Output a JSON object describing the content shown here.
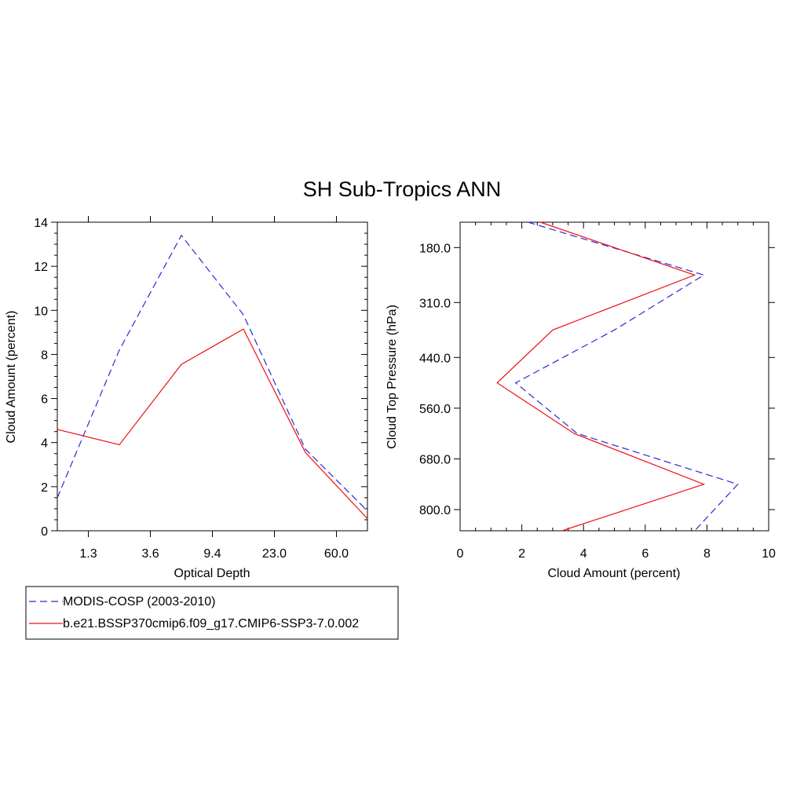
{
  "figure": {
    "title": "SH Sub-Tropics ANN"
  },
  "legend": {
    "placement": "bottom-left",
    "entries": [
      {
        "label": "MODIS-COSP (2003-2010)",
        "color": "#2a2ad6",
        "dash": "dashed"
      },
      {
        "label": "b.e21.BSSP370cmip6.f09_g17.CMIP6-SSP3-7.0.002",
        "color": "#ee1111",
        "dash": "solid"
      }
    ]
  },
  "chart_data": [
    {
      "type": "line",
      "xlabel": "Optical Depth",
      "ylabel": "Cloud Amount (percent)",
      "x_tick_labels": [
        "1.3",
        "3.6",
        "9.4",
        "23.0",
        "60.0"
      ],
      "y_ticks": [
        0,
        2,
        4,
        6,
        8,
        10,
        12,
        14
      ],
      "y_tick_labels": [
        "0",
        "2",
        "4",
        "6",
        "8",
        "10",
        "12",
        "14"
      ],
      "ylim": [
        0,
        14
      ],
      "x": [
        0.3,
        1.3,
        2.3,
        3.6,
        6.0,
        9.4,
        15.0,
        23.0,
        41.0,
        60.0,
        80.0
      ],
      "series": [
        {
          "name": "MODIS-COSP (2003-2010)",
          "x": [
            0.3,
            2.3,
            6.0,
            15.0,
            41.0,
            80.0
          ],
          "values": [
            1.5,
            8.2,
            13.4,
            9.8,
            3.7,
            0.9
          ]
        },
        {
          "name": "b.e21.BSSP370cmip6.f09_g17.CMIP6-SSP3-7.0.002",
          "x": [
            0.3,
            2.3,
            6.0,
            15.0,
            41.0,
            80.0
          ],
          "values": [
            4.6,
            3.9,
            7.55,
            9.15,
            3.55,
            0.55
          ]
        }
      ],
      "grid": false
    },
    {
      "type": "line",
      "xlabel": "Cloud Amount (percent)",
      "ylabel": "Cloud Top Pressure (hPa)",
      "x_ticks": [
        0,
        2,
        4,
        6,
        8,
        10
      ],
      "x_tick_labels": [
        "0",
        "2",
        "4",
        "6",
        "8",
        "10"
      ],
      "xlim": [
        0,
        10
      ],
      "y_ticks": [
        180.0,
        310.0,
        440.0,
        560.0,
        680.0,
        800.0
      ],
      "y_tick_labels": [
        "180.0",
        "310.0",
        "440.0",
        "560.0",
        "680.0",
        "800.0"
      ],
      "ylim": [
        120,
        850
      ],
      "y_inverted": true,
      "series": [
        {
          "name": "MODIS-COSP (2003-2010)",
          "pressure": [
            120,
            245,
            375,
            500,
            620,
            740,
            850
          ],
          "values": [
            2.2,
            7.9,
            5.0,
            1.8,
            3.8,
            9.0,
            7.6
          ]
        },
        {
          "name": "b.e21.BSSP370cmip6.f09_g17.CMIP6-SSP3-7.0.002",
          "pressure": [
            120,
            245,
            375,
            500,
            620,
            740,
            850
          ],
          "values": [
            2.6,
            7.6,
            3.0,
            1.2,
            3.7,
            7.9,
            3.3
          ]
        }
      ],
      "grid": false
    }
  ]
}
